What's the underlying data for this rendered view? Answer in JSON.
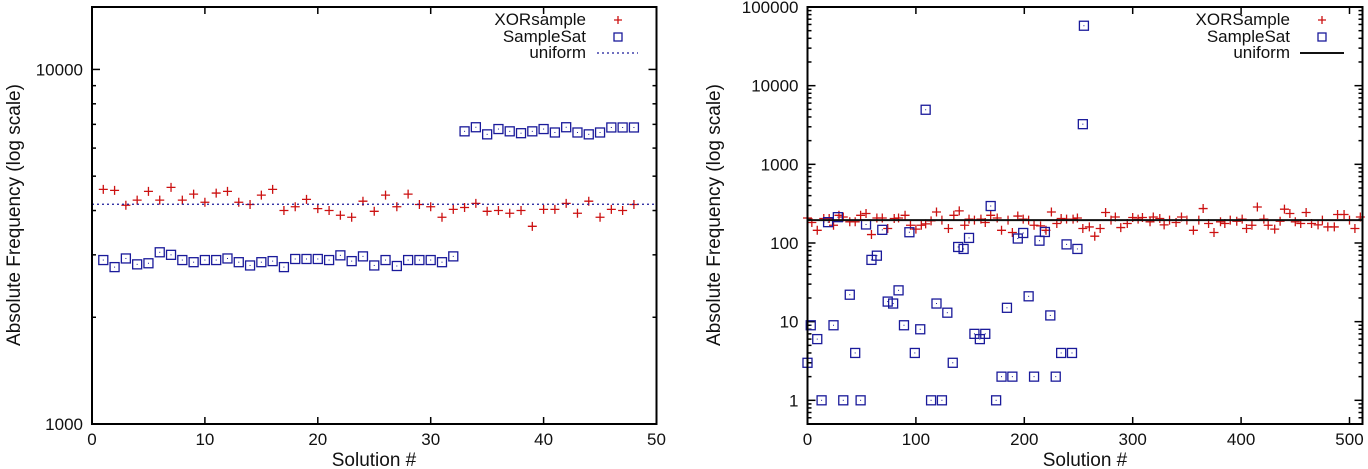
{
  "chart_data": [
    {
      "type": "scatter",
      "title": "",
      "xlabel": "Solution #",
      "ylabel": "Absolute Frequency (log scale)",
      "xlim": [
        0,
        50
      ],
      "ylim": [
        1000,
        15000
      ],
      "yscale": "log",
      "xticks": [
        0,
        10,
        20,
        30,
        40,
        50
      ],
      "yticks": [
        1000,
        10000
      ],
      "legend_position": "top-right",
      "series": [
        {
          "name": "XORsample",
          "marker": "plus",
          "color": "#cc1111",
          "x": [
            1,
            2,
            3,
            4,
            5,
            6,
            7,
            8,
            9,
            10,
            11,
            12,
            13,
            14,
            15,
            16,
            17,
            18,
            19,
            20,
            21,
            22,
            23,
            24,
            25,
            26,
            27,
            28,
            29,
            30,
            31,
            32,
            33,
            34,
            35,
            36,
            37,
            38,
            39,
            40,
            41,
            42,
            43,
            44,
            45,
            46,
            47,
            48
          ],
          "y": [
            4590,
            4560,
            4140,
            4280,
            4530,
            4280,
            4650,
            4280,
            4450,
            4220,
            4480,
            4530,
            4220,
            4160,
            4420,
            4590,
            4000,
            4100,
            4300,
            4050,
            4000,
            3880,
            3830,
            4250,
            3980,
            4420,
            4100,
            4450,
            4160,
            4100,
            3830,
            4030,
            4080,
            4190,
            3980,
            4000,
            3930,
            4000,
            3610,
            4030,
            4030,
            4190,
            3930,
            4250,
            3830,
            4030,
            4000,
            4160
          ]
        },
        {
          "name": "SampleSat",
          "marker": "square",
          "color": "#1a1a9a",
          "x": [
            1,
            2,
            3,
            4,
            5,
            6,
            7,
            8,
            9,
            10,
            11,
            12,
            13,
            14,
            15,
            16,
            17,
            18,
            19,
            20,
            21,
            22,
            23,
            24,
            25,
            26,
            27,
            28,
            29,
            30,
            31,
            32,
            33,
            34,
            35,
            36,
            37,
            38,
            39,
            40,
            41,
            42,
            43,
            44,
            45,
            46,
            47,
            48
          ],
          "y": [
            2900,
            2770,
            2930,
            2820,
            2840,
            3050,
            3000,
            2900,
            2860,
            2900,
            2900,
            2930,
            2860,
            2800,
            2860,
            2880,
            2770,
            2920,
            2920,
            2920,
            2900,
            2990,
            2880,
            2970,
            2800,
            2900,
            2790,
            2900,
            2900,
            2900,
            2860,
            2970,
            6690,
            6870,
            6560,
            6790,
            6690,
            6610,
            6690,
            6790,
            6640,
            6870,
            6640,
            6560,
            6640,
            6860,
            6860,
            6860
          ]
        },
        {
          "name": "uniform",
          "marker": "dotted-line",
          "color": "#1a1a9a",
          "value": 4166.7
        }
      ]
    },
    {
      "type": "scatter",
      "title": "",
      "xlabel": "Solution #",
      "ylabel": "Absolute Frequency (log scale)",
      "xlim": [
        0,
        512
      ],
      "ylim": [
        0.5,
        100000
      ],
      "yscale": "log",
      "xticks": [
        0,
        100,
        200,
        300,
        400,
        500
      ],
      "yticks": [
        1,
        10,
        100,
        1000,
        10000,
        100000
      ],
      "legend_position": "top-right",
      "series": [
        {
          "name": "XORSample",
          "marker": "plus",
          "color": "#cc1111",
          "x": [
            0,
            4,
            9,
            15,
            20,
            24,
            29,
            33,
            39,
            44,
            49,
            54,
            59,
            64,
            69,
            74,
            80,
            84,
            90,
            95,
            100,
            105,
            109,
            114,
            119,
            124,
            130,
            135,
            140,
            145,
            149,
            154,
            160,
            164,
            169,
            175,
            179,
            185,
            189,
            194,
            199,
            204,
            209,
            215,
            220,
            225,
            230,
            234,
            239,
            245,
            249,
            254,
            260,
            265,
            270,
            275,
            280,
            284,
            289,
            295,
            300,
            305,
            309,
            316,
            319,
            325,
            329,
            334,
            340,
            345,
            350,
            356,
            361,
            365,
            370,
            375,
            381,
            385,
            390,
            396,
            401,
            405,
            410,
            415,
            421,
            425,
            431,
            436,
            440,
            445,
            450,
            455,
            460,
            465,
            471,
            475,
            480,
            486,
            489,
            495,
            500,
            505,
            510
          ],
          "y": [
            208,
            182,
            145,
            205,
            205,
            168,
            225,
            214,
            186,
            186,
            225,
            237,
            128,
            208,
            208,
            153,
            205,
            208,
            225,
            168,
            150,
            168,
            175,
            191,
            248,
            195,
            153,
            225,
            256,
            168,
            201,
            195,
            201,
            182,
            225,
            208,
            145,
            195,
            136,
            220,
            201,
            195,
            168,
            165,
            145,
            248,
            177,
            205,
            201,
            201,
            208,
            153,
            160,
            122,
            153,
            244,
            195,
            214,
            157,
            177,
            211,
            201,
            211,
            186,
            214,
            205,
            170,
            195,
            182,
            214,
            195,
            145,
            195,
            274,
            177,
            136,
            186,
            177,
            195,
            189,
            201,
            153,
            168,
            287,
            201,
            168,
            150,
            189,
            269,
            237,
            186,
            177,
            244,
            177,
            170,
            195,
            160,
            160,
            230,
            230,
            195,
            153,
            214
          ]
        },
        {
          "name": "SampleSat",
          "marker": "square",
          "color": "#1a1a9a",
          "x": [
            0,
            3,
            9,
            13,
            19,
            24,
            28,
            33,
            39,
            44,
            49,
            54,
            59,
            64,
            69,
            74,
            79,
            84,
            89,
            94,
            99,
            104,
            109,
            114,
            119,
            124,
            129,
            134,
            139,
            144,
            149,
            154,
            159,
            164,
            169,
            174,
            179,
            184,
            189,
            194,
            199,
            204,
            209,
            214,
            219,
            224,
            229,
            234,
            239,
            244,
            249,
            254,
            255
          ],
          "y": [
            3,
            9,
            6,
            1,
            184,
            9,
            213,
            1,
            22,
            4,
            1,
            172,
            61,
            69,
            147,
            18,
            17,
            25,
            9,
            137,
            4,
            8,
            4940,
            1,
            17,
            1,
            13,
            3,
            89,
            84,
            116,
            7,
            6,
            7,
            295,
            1,
            2,
            15,
            2,
            114,
            134,
            21,
            2,
            107,
            138,
            12,
            2,
            4,
            96,
            4,
            84,
            3240,
            57800
          ]
        },
        {
          "name": "uniform",
          "marker": "solid-line",
          "color": "#111111",
          "value": 195.3
        }
      ]
    }
  ]
}
